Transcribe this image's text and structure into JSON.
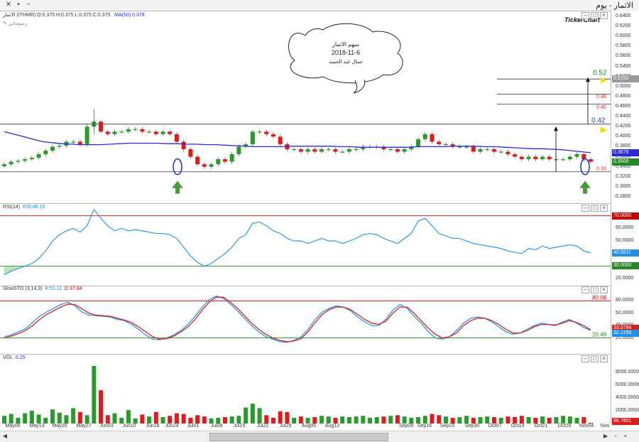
{
  "window": {
    "title": "الاثمار - يوم",
    "controls": [
      "▫",
      "▪",
      "✕"
    ]
  },
  "price_panel": {
    "header": "الاثمار (ITHMR)  O:0.375  H:0.375  L:0.375  C:0.375",
    "ma_label": "MA(50)  0.378",
    "drawing_tool": "رسوماتي",
    "logo": "TickerChart",
    "yticks": [
      "0.6400",
      "0.6200",
      "0.6000",
      "0.5800",
      "0.5600",
      "0.5400",
      "0.5200",
      "0.5000",
      "0.4800",
      "0.4600",
      "0.4400",
      "0.4200",
      "0.4000",
      "0.3800",
      "0.3600",
      "0.3400",
      "0.3200",
      "0.3000",
      "0.2800"
    ],
    "ylim": [
      0.28,
      0.64
    ],
    "last_price_label": "0.3500",
    "ma_value_label": "0.3679",
    "highlight_label": "0.5152",
    "annotation": {
      "line1": "سهم الاثمار",
      "line2": "2018-11-6",
      "line3": "جمال عبد الحميد"
    },
    "targets": [
      {
        "text": "0.52",
        "color": "#1f8a1f"
      },
      {
        "text": "0.48",
        "color": "#e03030"
      },
      {
        "text": "0.45",
        "color": "#e03030"
      },
      {
        "text": "0.42",
        "color": "#1f3fbf"
      },
      {
        "text": "0.33",
        "color": "#e03030"
      }
    ]
  },
  "rsi_panel": {
    "header": "RSI(14)",
    "value_text": "RSI:48.19",
    "yticks": [
      "70.0000",
      "60.0000",
      "50.0000",
      "40.0000",
      "30.0000",
      "20.0000"
    ],
    "overbought_label": "70.0000",
    "oversold_label": "30.0000",
    "current_label": "40.5611"
  },
  "stoch_panel": {
    "header": "SlowSTO (3,14,3)",
    "k_text": "K:51.11",
    "d_text": "D:37.04",
    "yticks": [
      "80.0000",
      "60.0000",
      "40.0000",
      "20.0000"
    ],
    "upper_text": "80.08",
    "lower_text": "20.49",
    "d_label": "33.0784",
    "k_label": "32.1256"
  },
  "vol_panel": {
    "header": "VOL",
    "value_text": "0.25",
    "yticks": [
      "8000.0000",
      "6000.0000",
      "4000.0000",
      "2000.0000"
    ],
    "current_label": "98.7801"
  },
  "dates": [
    "May06",
    "May13",
    "May20",
    "May27",
    "Jun03",
    "Jun10",
    "Jun18",
    "Jun24",
    "Jul01",
    "Jul08",
    "Jul15",
    "Jul22",
    "Jul29",
    "Aug05",
    "Aug12",
    "Sep09",
    "Sep16",
    "Sep23",
    "Sep30",
    "Oct07",
    "Oct14",
    "Oct21",
    "Oct28",
    "Nov04",
    "Nov"
  ],
  "chart_data": {
    "type": "candlestick",
    "title": "الاثمار (ITHMR)",
    "xlabel": "",
    "ylabel": "",
    "ylim": [
      0.28,
      0.64
    ],
    "series": [
      {
        "name": "MA(50)",
        "values": [
          0.41,
          0.405,
          0.4,
          0.395,
          0.39,
          0.388,
          0.386,
          0.385,
          0.384,
          0.384,
          0.384,
          0.385,
          0.386,
          0.387,
          0.387,
          0.387,
          0.387,
          0.386,
          0.386,
          0.385,
          0.385,
          0.384,
          0.384,
          0.383,
          0.382,
          0.381,
          0.38,
          0.38,
          0.38,
          0.38,
          0.381,
          0.381,
          0.381,
          0.381,
          0.381,
          0.38,
          0.38,
          0.379,
          0.379,
          0.379,
          0.379,
          0.379,
          0.379,
          0.38,
          0.38,
          0.38,
          0.38,
          0.381,
          0.381,
          0.381,
          0.38,
          0.38,
          0.379,
          0.378,
          0.377,
          0.376,
          0.376,
          0.375,
          0.374,
          0.372,
          0.37,
          0.368
        ]
      }
    ],
    "candles_close": [
      0.345,
      0.35,
      0.352,
      0.355,
      0.358,
      0.365,
      0.372,
      0.38,
      0.382,
      0.39,
      0.39,
      0.385,
      0.42,
      0.43,
      0.41,
      0.405,
      0.41,
      0.41,
      0.415,
      0.415,
      0.41,
      0.41,
      0.405,
      0.41,
      0.405,
      0.39,
      0.375,
      0.36,
      0.345,
      0.34,
      0.345,
      0.355,
      0.35,
      0.365,
      0.38,
      0.385,
      0.41,
      0.41,
      0.405,
      0.4,
      0.385,
      0.375,
      0.375,
      0.37,
      0.375,
      0.37,
      0.375,
      0.375,
      0.37,
      0.37,
      0.375,
      0.375,
      0.38,
      0.38,
      0.38,
      0.375,
      0.375,
      0.37,
      0.375,
      0.38,
      0.395,
      0.405,
      0.39,
      0.385,
      0.385,
      0.38,
      0.38,
      0.38,
      0.37,
      0.375,
      0.375,
      0.37,
      0.37,
      0.365,
      0.36,
      0.355,
      0.36,
      0.355,
      0.36,
      0.355,
      0.355,
      0.355,
      0.36,
      0.365,
      0.355,
      0.35
    ],
    "rsi": [
      23,
      26,
      28,
      30,
      32,
      36,
      42,
      50,
      55,
      58,
      60,
      57,
      62,
      75,
      68,
      62,
      58,
      60,
      58,
      59,
      58,
      57,
      56,
      56,
      55,
      52,
      45,
      38,
      33,
      30,
      32,
      36,
      40,
      45,
      52,
      55,
      64,
      65,
      62,
      58,
      56,
      52,
      50,
      50,
      48,
      50,
      52,
      50,
      50,
      48,
      50,
      52,
      55,
      56,
      55,
      52,
      50,
      48,
      52,
      56,
      66,
      68,
      62,
      56,
      54,
      52,
      52,
      50,
      48,
      47,
      46,
      45,
      44,
      42,
      41,
      40,
      44,
      43,
      46,
      44,
      45,
      46,
      47,
      46,
      42,
      40.56
    ],
    "stoch_k": [
      22,
      25,
      30,
      35,
      45,
      55,
      62,
      68,
      74,
      78,
      72,
      62,
      57,
      56,
      55,
      54,
      50,
      48,
      42,
      34,
      25,
      18,
      17,
      20,
      25,
      32,
      42,
      55,
      70,
      82,
      88,
      84,
      75,
      64,
      52,
      40,
      30,
      22,
      18,
      14,
      13,
      16,
      22,
      34,
      50,
      62,
      68,
      72,
      70,
      64,
      54,
      46,
      40,
      40,
      50,
      65,
      74,
      68,
      55,
      44,
      30,
      20,
      18,
      22,
      32,
      44,
      52,
      54,
      52,
      46,
      38,
      30,
      26,
      28,
      34,
      40,
      44,
      42,
      40,
      46,
      50,
      44,
      37,
      32.13
    ],
    "stoch_d": [
      20,
      23,
      27,
      32,
      40,
      50,
      58,
      64,
      70,
      75,
      74,
      67,
      60,
      57,
      56,
      55,
      52,
      49,
      45,
      38,
      30,
      22,
      18,
      19,
      23,
      30,
      38,
      50,
      65,
      78,
      86,
      86,
      78,
      68,
      56,
      44,
      34,
      26,
      20,
      16,
      14,
      15,
      19,
      30,
      45,
      58,
      66,
      70,
      70,
      66,
      58,
      50,
      44,
      42,
      47,
      60,
      70,
      70,
      60,
      48,
      36,
      26,
      20,
      22,
      28,
      40,
      48,
      52,
      52,
      48,
      42,
      34,
      28,
      28,
      32,
      38,
      42,
      42,
      41,
      44,
      48,
      45,
      40,
      33.08
    ],
    "volume": [
      1200,
      1500,
      900,
      1600,
      2000,
      1400,
      900,
      2200,
      1700,
      1300,
      2400,
      1800,
      1300,
      9000,
      5200,
      1300,
      1600,
      900,
      2100,
      800,
      1400,
      1100,
      1800,
      1000,
      1200,
      1600,
      1500,
      900,
      1300,
      1100,
      800,
      900,
      1000,
      1100,
      1200,
      2500,
      3100,
      2400,
      1300,
      900,
      1900,
      1800,
      900,
      1100,
      900,
      1000,
      1200,
      1100,
      900,
      1100,
      1000,
      1100,
      1200,
      900,
      1000,
      1100,
      1200,
      1300,
      1100,
      900,
      1000,
      1200,
      1500,
      1300,
      1100,
      900,
      1000,
      1200,
      900,
      1000,
      1100,
      1000,
      900,
      1100,
      1000,
      1200,
      1000,
      900,
      1100,
      900,
      1000,
      1200,
      1100,
      900,
      1000,
      98.78
    ]
  }
}
